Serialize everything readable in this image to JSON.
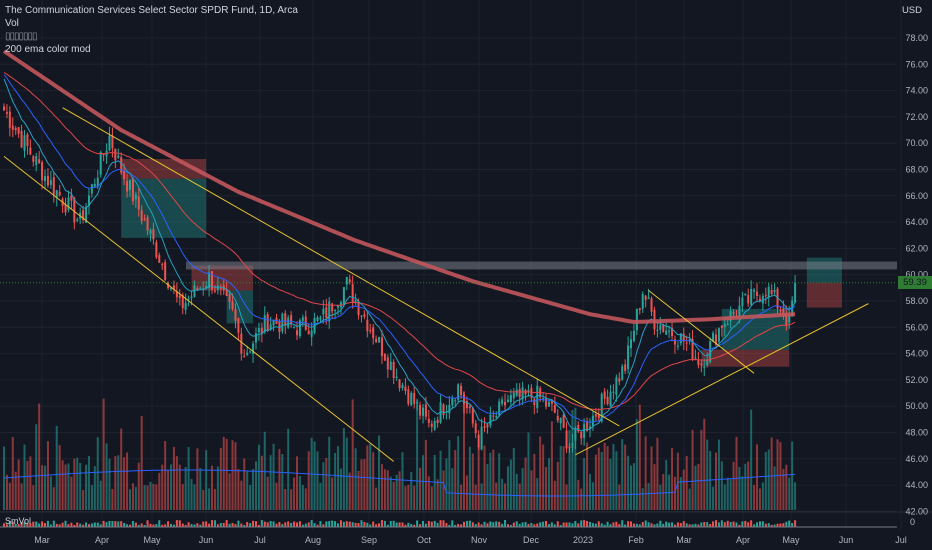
{
  "legend": {
    "title": "The Communication Services Select Sector SPDR Fund, 1D, Arca",
    "vol": "Vol",
    "indicator_boxes": "▯▯▯▯▯▯▯",
    "ema": "200 ema color mod"
  },
  "currency": "USD",
  "last_price_label": "59.39",
  "subpane_label": "SmVol",
  "subpane_tick": "0",
  "colors": {
    "background": "#131722",
    "up": "#26a69a",
    "down": "#ef5350",
    "ema200": "#c2575c",
    "ema_fast": "#1fa2c4",
    "ema_mid": "#2962ff",
    "ema_slow": "#e0464a",
    "trendline": "#e6c229",
    "resistance_band": "#787b86",
    "last_price": "#2e7d32"
  },
  "chart_data": {
    "type": "candlestick",
    "title": "The Communication Services Select Sector SPDR Fund, 1D, Arca",
    "y_axis_ticks": [
      "78.00",
      "76.00",
      "74.00",
      "72.00",
      "70.00",
      "68.00",
      "66.00",
      "64.00",
      "62.00",
      "60.00",
      "58.00",
      "56.00",
      "54.00",
      "52.00",
      "50.00",
      "48.00",
      "46.00",
      "44.00",
      "42.00"
    ],
    "ylim": [
      41.2,
      79.2
    ],
    "x_axis_ticks": [
      "Mar",
      "Apr",
      "May",
      "Jun",
      "Jul",
      "Aug",
      "Sep",
      "Oct",
      "Nov",
      "Dec",
      "2023",
      "Feb",
      "Mar",
      "Apr",
      "May",
      "Jun",
      "Jul"
    ],
    "last_price": 59.39,
    "anchors": [
      {
        "d": 0,
        "v": 72.5
      },
      {
        "d": 14,
        "v": 67.5
      },
      {
        "d": 26,
        "v": 64.0
      },
      {
        "d": 36,
        "v": 70.5
      },
      {
        "d": 40,
        "v": 68.0
      },
      {
        "d": 50,
        "v": 63.0
      },
      {
        "d": 60,
        "v": 57.5
      },
      {
        "d": 70,
        "v": 59.8
      },
      {
        "d": 78,
        "v": 57.0
      },
      {
        "d": 82,
        "v": 54.0
      },
      {
        "d": 90,
        "v": 56.5
      },
      {
        "d": 100,
        "v": 56.0
      },
      {
        "d": 108,
        "v": 56.5
      },
      {
        "d": 117,
        "v": 59.3
      },
      {
        "d": 125,
        "v": 56.0
      },
      {
        "d": 135,
        "v": 52.0
      },
      {
        "d": 145,
        "v": 48.5
      },
      {
        "d": 155,
        "v": 51.5
      },
      {
        "d": 162,
        "v": 47.5
      },
      {
        "d": 172,
        "v": 50.5
      },
      {
        "d": 182,
        "v": 50.8
      },
      {
        "d": 188,
        "v": 49.5
      },
      {
        "d": 193,
        "v": 47.0
      },
      {
        "d": 202,
        "v": 49.5
      },
      {
        "d": 212,
        "v": 53.0
      },
      {
        "d": 218,
        "v": 58.8
      },
      {
        "d": 222,
        "v": 56.5
      },
      {
        "d": 232,
        "v": 55.0
      },
      {
        "d": 238,
        "v": 53.3
      },
      {
        "d": 245,
        "v": 56.3
      },
      {
        "d": 255,
        "v": 58.2
      },
      {
        "d": 260,
        "v": 59.0
      },
      {
        "d": 265,
        "v": 57.5
      },
      {
        "d": 268,
        "v": 56.3
      },
      {
        "d": 270,
        "v": 59.39
      }
    ],
    "ema200": [
      {
        "d": 0,
        "v": 77.0
      },
      {
        "d": 40,
        "v": 71.0
      },
      {
        "d": 80,
        "v": 66.3
      },
      {
        "d": 120,
        "v": 62.6
      },
      {
        "d": 160,
        "v": 59.5
      },
      {
        "d": 200,
        "v": 57.0
      },
      {
        "d": 215,
        "v": 56.4
      },
      {
        "d": 240,
        "v": 56.6
      },
      {
        "d": 270,
        "v": 57.0
      }
    ],
    "horizontal_band": {
      "from": 60.4,
      "to": 61.0
    },
    "trendlines": [
      {
        "d1": 0,
        "v1": 69.0,
        "d2": 133,
        "v2": 45.8
      },
      {
        "d1": 20,
        "v1": 72.7,
        "d2": 210,
        "v2": 48.5
      },
      {
        "d1": 220,
        "v1": 58.8,
        "d2": 256,
        "v2": 52.5
      },
      {
        "d1": 195,
        "v1": 46.3,
        "d2": 295,
        "v2": 57.8
      }
    ],
    "zones": [
      {
        "d1": 40,
        "d2": 69,
        "top": 68.8,
        "bottom": 67.3,
        "kind": "loss"
      },
      {
        "d1": 40,
        "d2": 69,
        "top": 67.3,
        "bottom": 62.8,
        "kind": "profit"
      },
      {
        "d1": 64,
        "d2": 85,
        "top": 60.7,
        "bottom": 58.8,
        "kind": "loss"
      },
      {
        "d1": 76,
        "d2": 85,
        "top": 58.8,
        "bottom": 56.3,
        "kind": "profit"
      },
      {
        "d1": 245,
        "d2": 268,
        "top": 57.4,
        "bottom": 54.3,
        "kind": "profit"
      },
      {
        "d1": 238,
        "d2": 268,
        "top": 54.3,
        "bottom": 53.0,
        "kind": "loss"
      },
      {
        "d1": 274,
        "d2": 286,
        "top": 61.3,
        "bottom": 59.4,
        "kind": "profit"
      },
      {
        "d1": 274,
        "d2": 286,
        "top": 59.4,
        "bottom": 57.5,
        "kind": "loss"
      }
    ]
  }
}
